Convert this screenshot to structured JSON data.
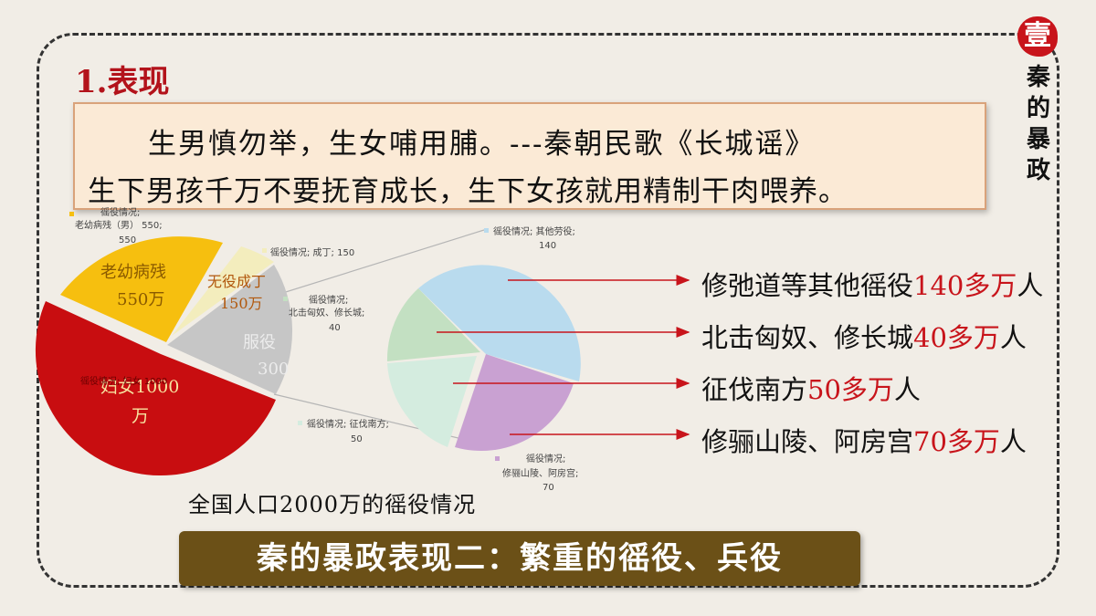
{
  "section_title": "1.表现",
  "quote": {
    "line1": "生男慎勿举，生女哺用脯。---秦朝民歌《长城谣》",
    "line2": "生下男孩千万不要抚育成长，生下女孩就用精制干肉喂养。"
  },
  "seal": {
    "mark": "壹",
    "text": "秦的暴政"
  },
  "chart_data": {
    "type": "pie",
    "title": "全国人口2000万的徭役情况",
    "main_pie": {
      "slices": [
        {
          "label": "老幼病残",
          "value": 550,
          "unit": "万",
          "inner_label": "老幼病残",
          "inner_value": "550万",
          "ext_label": "徭役情况;",
          "ext_label2": "老幼病残（男） 550;",
          "ext_value": "550",
          "color": "#f6bf0f"
        },
        {
          "label": "无役成丁",
          "value": 150,
          "unit": "万",
          "inner_label": "无役成丁",
          "inner_value": "150万",
          "ext_label": "徭役情况; 成丁; 150",
          "color": "#f3edbd"
        },
        {
          "label": "服役",
          "value": 300,
          "unit": "万",
          "inner_label": "服役",
          "inner_value": "300",
          "color": "#c6c6c6"
        },
        {
          "label": "妇女",
          "value": 1000,
          "unit": "万",
          "inner_label": "妇女1000",
          "inner_value": "万",
          "ext_label": "徭役情况; 妇女 1000",
          "color": "#c80d10"
        }
      ]
    },
    "sub_pie": {
      "slices": [
        {
          "label": "其他劳役",
          "value": 140,
          "ext_label": "徭役情况; 其他劳役;",
          "ext_value": "140",
          "color": "#b9dbee"
        },
        {
          "label": "修骊山陵、阿房宫",
          "value": 70,
          "ext_label": "徭役情况;",
          "ext_label2": "修骊山陵、阿房宫;",
          "ext_value": "70",
          "color": "#c9a1d2"
        },
        {
          "label": "征伐南方",
          "value": 50,
          "ext_label": "徭役情况; 征伐南方;",
          "ext_value": "50",
          "color": "#d4ecdf"
        },
        {
          "label": "北击匈奴、修长城",
          "value": 40,
          "ext_label": "徭役情况;",
          "ext_label2": "北击匈奴、修长城;",
          "ext_value": "40",
          "color": "#c3e0c2"
        }
      ]
    }
  },
  "callouts": [
    {
      "prefix": "修弛道等其他徭役",
      "num": "140多万",
      "suffix": "人"
    },
    {
      "prefix": "北击匈奴、修长城",
      "num": "40多万",
      "suffix": "人"
    },
    {
      "prefix": "征伐南方",
      "num": "50多万",
      "suffix": "人"
    },
    {
      "prefix": "修骊山陵、阿房宫",
      "num": "70多万",
      "suffix": "人"
    }
  ],
  "banner": "秦的暴政表现二：繁重的徭役、兵役",
  "colors": {
    "accent_red": "#c8141b",
    "banner_bg": "#6b5017",
    "quote_bg": "#fbead6"
  }
}
